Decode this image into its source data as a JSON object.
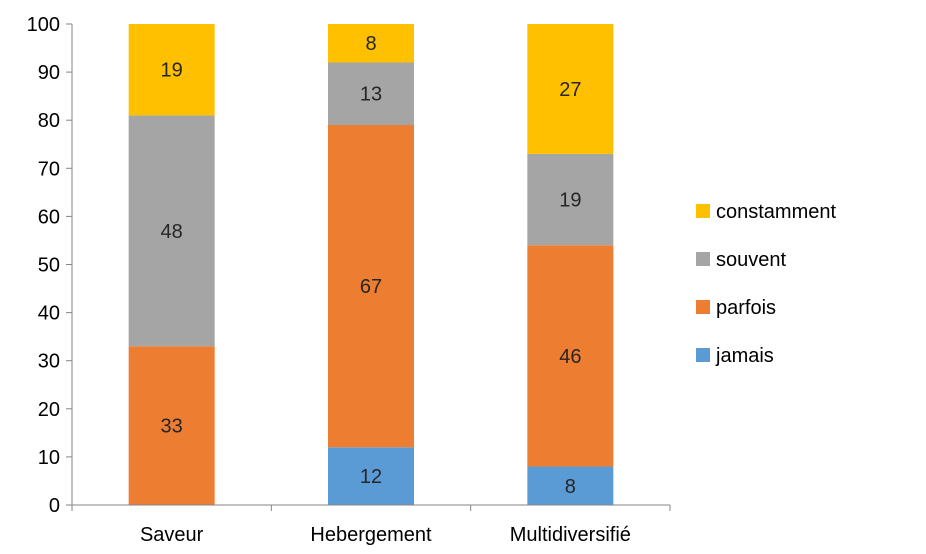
{
  "chart_data": {
    "type": "bar",
    "stacked": true,
    "categories": [
      "Saveur",
      "Hebergement",
      "Multidiversifié"
    ],
    "series": [
      {
        "name": "jamais",
        "color": "#5B9BD5",
        "values": [
          0,
          12,
          8
        ]
      },
      {
        "name": "parfois",
        "color": "#ED7D31",
        "values": [
          33,
          67,
          46
        ]
      },
      {
        "name": "souvent",
        "color": "#A5A5A5",
        "values": [
          48,
          13,
          19
        ]
      },
      {
        "name": "constamment",
        "color": "#FFC000",
        "values": [
          19,
          8,
          27
        ]
      }
    ],
    "ylim": [
      0,
      100
    ],
    "yticks": [
      0,
      10,
      20,
      30,
      40,
      50,
      60,
      70,
      80,
      90,
      100
    ],
    "grid": false,
    "legend_position": "right",
    "legend_order": [
      "constamment",
      "souvent",
      "parfois",
      "jamais"
    ]
  }
}
